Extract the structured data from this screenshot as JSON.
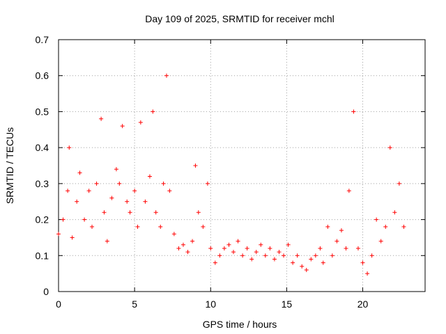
{
  "chart_data": {
    "type": "scatter",
    "title": "Day 109 of 2025, SRMTID for receiver mchl",
    "xlabel": "GPS time / hours",
    "ylabel": "SRMTID / TECUs",
    "xlim": [
      0,
      24.1
    ],
    "ylim": [
      0,
      0.7
    ],
    "x_ticks": [
      0,
      5,
      10,
      15,
      20
    ],
    "y_ticks": [
      0,
      0.1,
      0.2,
      0.3,
      0.4,
      0.5,
      0.6,
      0.7
    ],
    "x_tick_labels": [
      "0",
      "5",
      "10",
      "15",
      "20"
    ],
    "y_tick_labels": [
      "0",
      "0.1",
      "0.2",
      "0.3",
      "0.4",
      "0.5",
      "0.6",
      "0.7"
    ],
    "grid": true,
    "marker": "+",
    "color": "#ff0000",
    "series": [
      {
        "name": "SRMTID",
        "x": [
          0.0,
          0.3,
          0.6,
          0.7,
          0.9,
          1.2,
          1.4,
          1.7,
          2.0,
          2.2,
          2.5,
          2.8,
          3.0,
          3.2,
          3.5,
          3.8,
          4.0,
          4.2,
          4.5,
          4.7,
          5.0,
          5.2,
          5.4,
          5.7,
          6.0,
          6.2,
          6.4,
          6.7,
          6.9,
          7.1,
          7.3,
          7.6,
          7.9,
          8.2,
          8.5,
          8.8,
          9.0,
          9.2,
          9.5,
          9.8,
          10.0,
          10.3,
          10.6,
          10.9,
          11.2,
          11.5,
          11.8,
          12.1,
          12.4,
          12.7,
          13.0,
          13.3,
          13.6,
          13.9,
          14.2,
          14.5,
          14.8,
          15.1,
          15.4,
          15.7,
          16.0,
          16.3,
          16.6,
          16.9,
          17.2,
          17.4,
          17.7,
          18.0,
          18.3,
          18.6,
          18.9,
          19.1,
          19.4,
          19.7,
          20.0,
          20.3,
          20.6,
          20.9,
          21.2,
          21.5,
          21.8,
          22.1,
          22.4,
          22.7
        ],
        "y": [
          0.16,
          0.2,
          0.28,
          0.4,
          0.15,
          0.25,
          0.33,
          0.2,
          0.28,
          0.18,
          0.3,
          0.48,
          0.22,
          0.14,
          0.26,
          0.34,
          0.3,
          0.46,
          0.25,
          0.22,
          0.28,
          0.18,
          0.47,
          0.25,
          0.32,
          0.5,
          0.22,
          0.18,
          0.3,
          0.6,
          0.28,
          0.16,
          0.12,
          0.13,
          0.11,
          0.14,
          0.35,
          0.22,
          0.18,
          0.3,
          0.12,
          0.08,
          0.1,
          0.12,
          0.13,
          0.11,
          0.14,
          0.1,
          0.12,
          0.09,
          0.11,
          0.13,
          0.1,
          0.12,
          0.09,
          0.11,
          0.1,
          0.13,
          0.08,
          0.1,
          0.07,
          0.06,
          0.09,
          0.1,
          0.12,
          0.08,
          0.18,
          0.1,
          0.14,
          0.17,
          0.12,
          0.28,
          0.5,
          0.12,
          0.08,
          0.05,
          0.1,
          0.2,
          0.14,
          0.18,
          0.4,
          0.22,
          0.3,
          0.18
        ]
      }
    ]
  }
}
